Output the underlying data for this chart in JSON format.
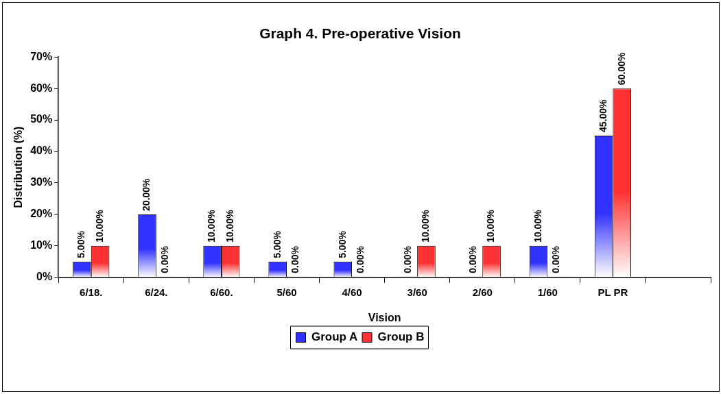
{
  "chart_data": {
    "type": "bar",
    "title": "Graph 4. Pre-operative Vision",
    "xlabel": "Vision",
    "ylabel": "Distribution (%)",
    "categories": [
      "6/18.",
      "6/24.",
      "6/60.",
      "5/60",
      "4/60",
      "3/60",
      "2/60",
      "1/60",
      "PL PR",
      null
    ],
    "series": [
      {
        "name": "Group A",
        "color": "#3333ff",
        "values": [
          5,
          20,
          10,
          5,
          5,
          0,
          0,
          10,
          45,
          null
        ],
        "value_labels": [
          "5.00%",
          "20.00%",
          "10.00%",
          "5.00%",
          "5.00%",
          "0.00%",
          "0.00%",
          "10.00%",
          "45.00%",
          null
        ]
      },
      {
        "name": "Group B",
        "color": "#ff3333",
        "values": [
          10,
          0,
          10,
          0,
          0,
          10,
          10,
          0,
          60,
          null
        ],
        "value_labels": [
          "10.00%",
          "0.00%",
          "10.00%",
          "0.00%",
          "0.00%",
          "10.00%",
          "10.00%",
          "0.00%",
          "60.00%",
          null
        ]
      }
    ],
    "ylim": [
      0,
      70
    ],
    "yticks": [
      {
        "value": 0,
        "label": "0%"
      },
      {
        "value": 10,
        "label": "10%"
      },
      {
        "value": 20,
        "label": "20%"
      },
      {
        "value": 30,
        "label": "30%"
      },
      {
        "value": 40,
        "label": "40%"
      },
      {
        "value": 50,
        "label": "50%"
      },
      {
        "value": 60,
        "label": "60%"
      },
      {
        "value": 70,
        "label": "70%"
      }
    ],
    "grid": false,
    "legend": "bottom"
  }
}
